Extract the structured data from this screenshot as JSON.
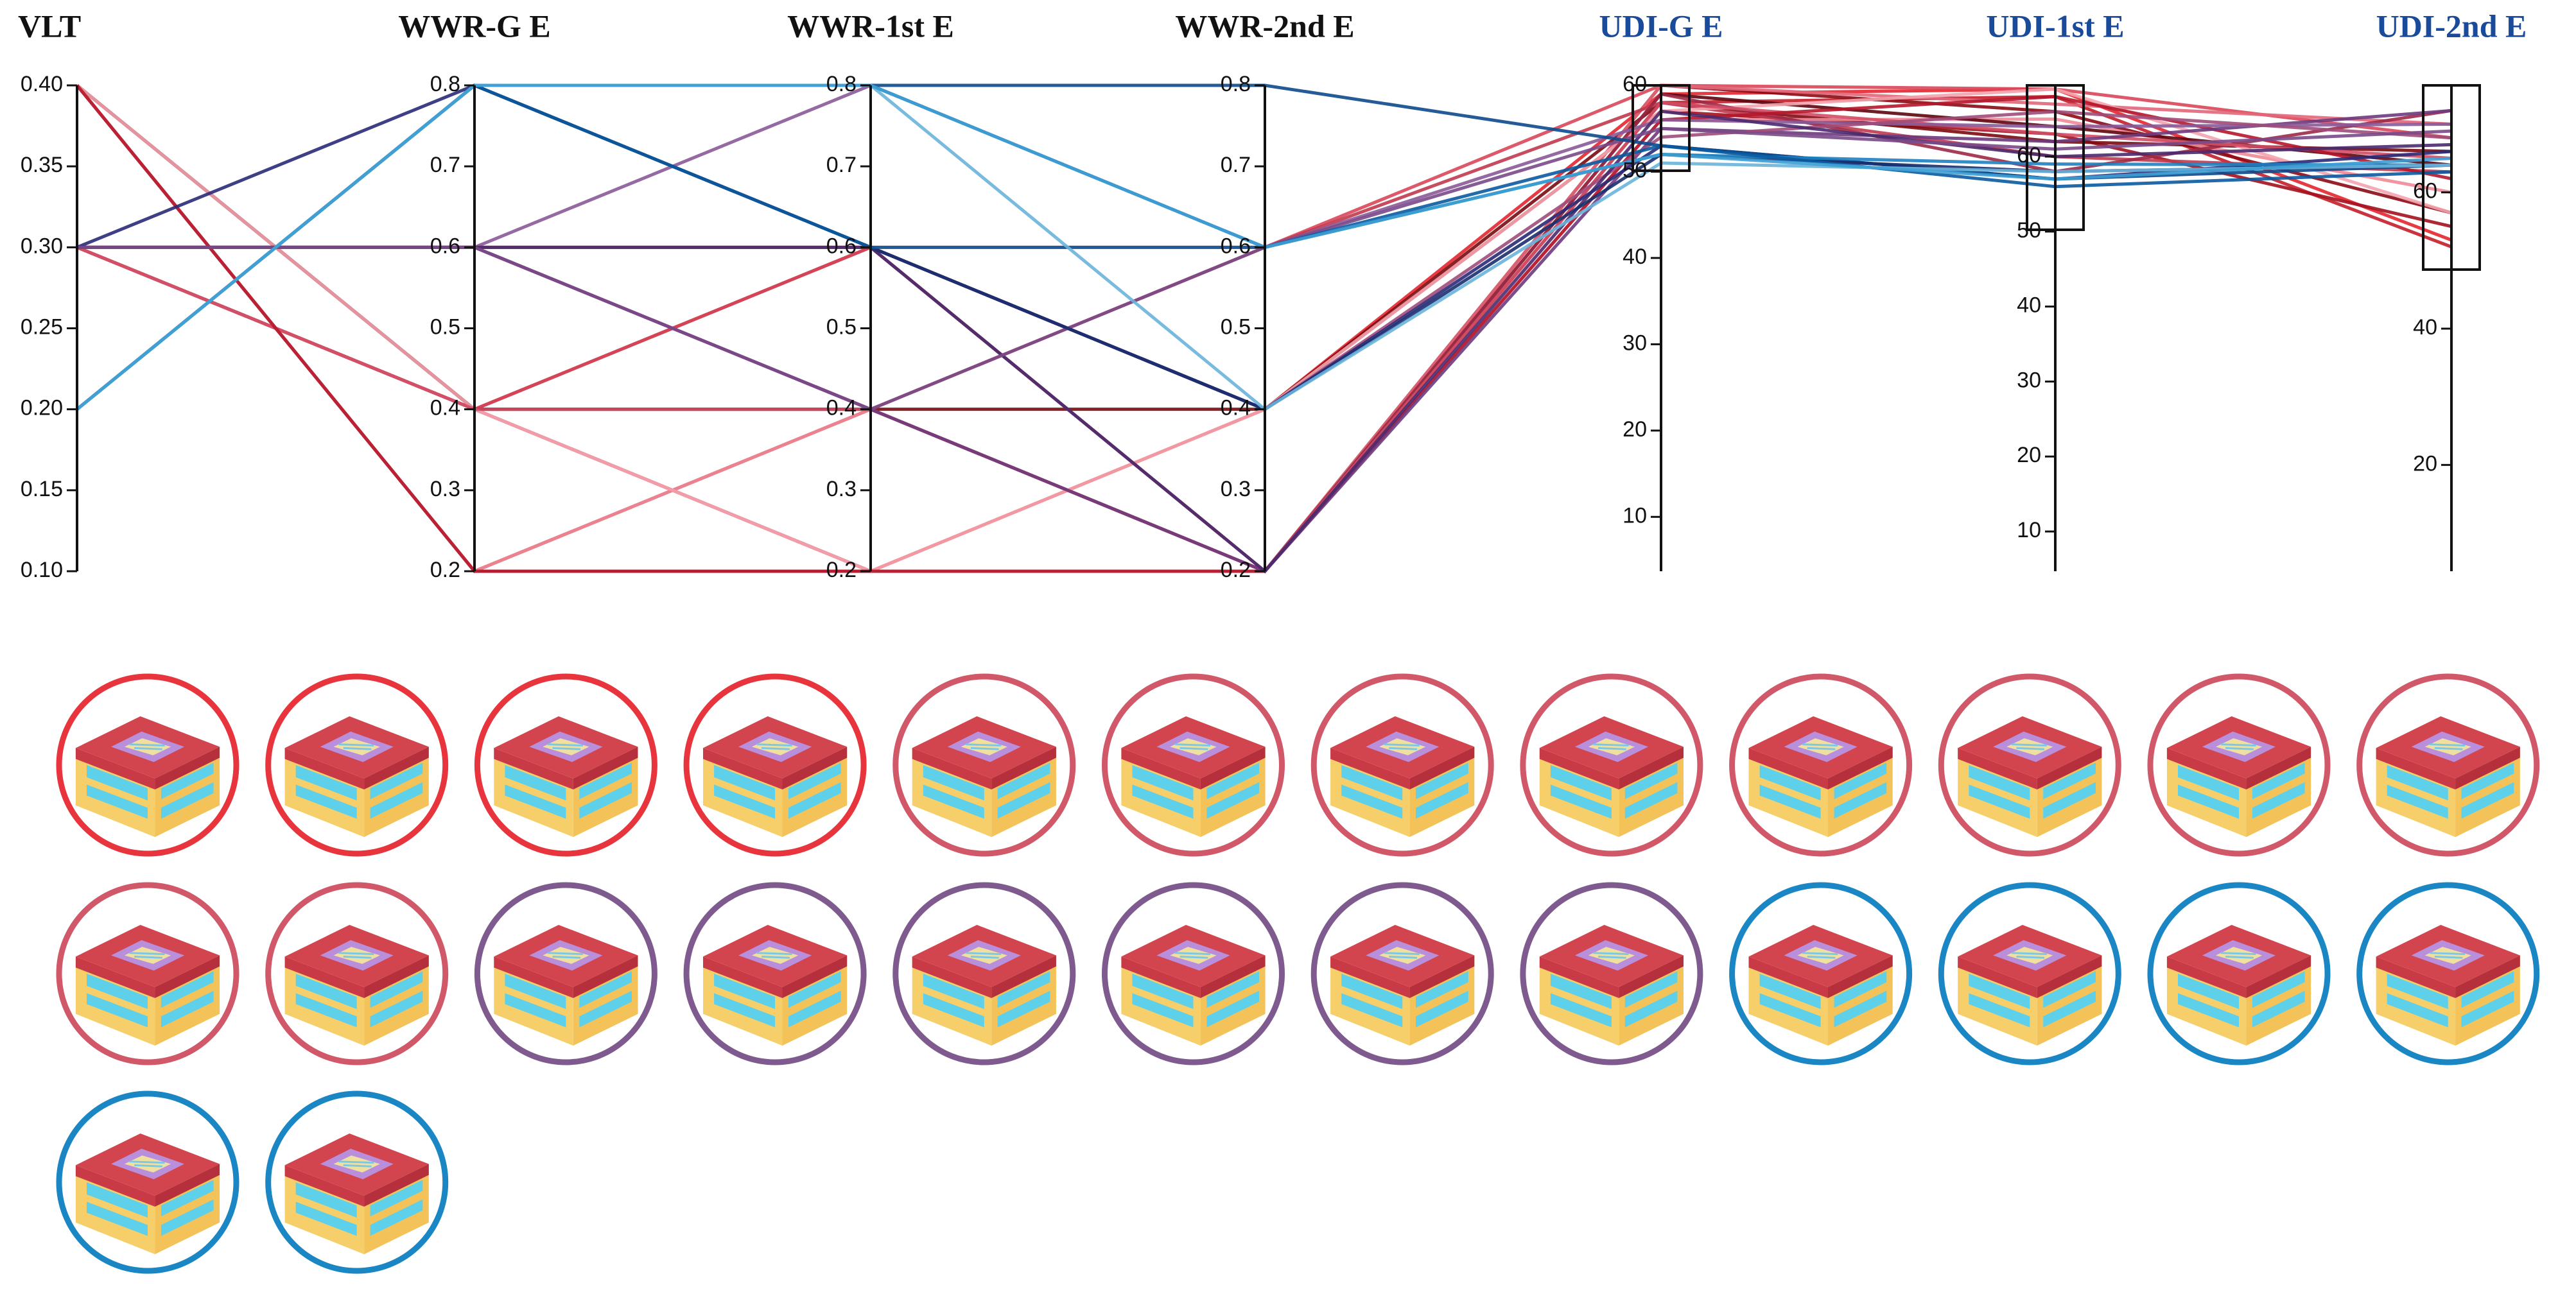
{
  "chart_data": {
    "type": "parallel",
    "axes": [
      {
        "name": "VLT",
        "color": "#111111",
        "ylim": [
          0.1,
          0.4
        ],
        "yticks": [
          {
            "value": 0.1,
            "label": "0.10"
          },
          0.15,
          {
            "value": 0.2,
            "label": "0.20"
          },
          0.25,
          {
            "value": 0.3,
            "label": "0.30"
          },
          0.35,
          {
            "value": 0.4,
            "label": "0.40"
          }
        ]
      },
      {
        "name": "WWR-G E",
        "color": "#111111",
        "ylim": [
          0.2,
          0.8
        ],
        "yticks": [
          0.2,
          0.3,
          0.4,
          0.5,
          0.6,
          0.7,
          0.8
        ]
      },
      {
        "name": "WWR-1st E",
        "color": "#111111",
        "ylim": [
          0.2,
          0.8
        ],
        "yticks": [
          0.2,
          0.3,
          0.4,
          0.5,
          0.6,
          0.7,
          0.8
        ]
      },
      {
        "name": "WWR-2nd E",
        "color": "#111111",
        "ylim": [
          0.2,
          0.8
        ],
        "yticks": [
          0.2,
          0.3,
          0.4,
          0.5,
          0.6,
          0.7,
          0.8
        ]
      },
      {
        "name": "UDI-G E",
        "color": "#1a4a9a",
        "ylim": [
          3.7,
          60
        ],
        "yticks": [
          10,
          20,
          30,
          40,
          50,
          60
        ]
      },
      {
        "name": "UDI-1st E",
        "color": "#1a4a9a",
        "ylim": [
          4.7,
          69.5
        ],
        "yticks": [
          10,
          20,
          30,
          40,
          50,
          60
        ]
      },
      {
        "name": "UDI-2nd E",
        "color": "#1a4a9a",
        "ylim": [
          4.4,
          75.7
        ],
        "yticks": [
          20,
          40,
          60
        ]
      }
    ],
    "series": [
      {
        "color": "#e3262f",
        "values": [
          0.4,
          0.2,
          0.2,
          0.4,
          59,
          69,
          53
        ]
      },
      {
        "color": "#c41e2a",
        "values": [
          0.4,
          0.2,
          0.4,
          0.2,
          58,
          68,
          52
        ]
      },
      {
        "color": "#8b0a14",
        "values": [
          0.3,
          0.4,
          0.2,
          0.2,
          60,
          66,
          57
        ]
      },
      {
        "color": "#a3121e",
        "values": [
          0.4,
          0.4,
          0.6,
          0.4,
          57,
          63,
          55
        ]
      },
      {
        "color": "#d9475a",
        "values": [
          0.3,
          0.4,
          0.6,
          0.6,
          60,
          69,
          68
        ]
      },
      {
        "color": "#7a0a10",
        "values": [
          0.3,
          0.4,
          0.4,
          0.4,
          58,
          62,
          66
        ]
      },
      {
        "color": "#f08a98",
        "values": [
          0.4,
          0.2,
          0.4,
          0.2,
          56,
          65,
          60
        ]
      },
      {
        "color": "#5e0610",
        "values": [
          0.4,
          0.4,
          0.4,
          0.2,
          59,
          64,
          64
        ]
      },
      {
        "color": "#e2677a",
        "values": [
          0.3,
          0.4,
          0.2,
          0.2,
          60,
          67,
          70
        ]
      },
      {
        "color": "#c0394e",
        "values": [
          0.3,
          0.6,
          0.4,
          0.6,
          58,
          60,
          63
        ]
      },
      {
        "color": "#f3a3ae",
        "values": [
          0.4,
          0.4,
          0.2,
          0.4,
          57,
          69,
          57
        ]
      },
      {
        "color": "#9e2a48",
        "values": [
          0.3,
          0.6,
          0.6,
          0.2,
          59,
          58,
          72
        ]
      },
      {
        "color": "#d24e66",
        "values": [
          0.3,
          0.4,
          0.4,
          0.2,
          58,
          63,
          65
        ]
      },
      {
        "color": "#b5172b",
        "values": [
          0.4,
          0.2,
          0.2,
          0.2,
          56,
          68,
          62
        ]
      },
      {
        "color": "#6e3a7e",
        "values": [
          0.3,
          0.6,
          0.4,
          0.2,
          55,
          62,
          72
        ]
      },
      {
        "color": "#8a5a98",
        "values": [
          0.3,
          0.6,
          0.8,
          0.6,
          56,
          64,
          70
        ]
      },
      {
        "color": "#a04c7a",
        "values": [
          0.3,
          0.6,
          0.6,
          0.4,
          54,
          66,
          68
        ]
      },
      {
        "color": "#4a2a6e",
        "values": [
          0.3,
          0.6,
          0.6,
          0.2,
          57,
          60,
          67
        ]
      },
      {
        "color": "#2a2a78",
        "values": [
          0.3,
          0.8,
          0.6,
          0.4,
          53,
          57,
          66
        ]
      },
      {
        "color": "#7a4a8a",
        "values": [
          0.3,
          0.6,
          0.4,
          0.6,
          55,
          61,
          69
        ]
      },
      {
        "color": "#0d4a8c",
        "values": [
          0.2,
          0.8,
          0.8,
          0.8,
          53,
          57,
          64
        ]
      },
      {
        "color": "#1a2f6e",
        "values": [
          0.2,
          0.8,
          0.6,
          0.4,
          52,
          58,
          64
        ]
      },
      {
        "color": "#1f7fc0",
        "values": [
          0.2,
          0.8,
          0.8,
          0.6,
          52,
          59,
          64
        ]
      },
      {
        "color": "#0a5aa0",
        "values": [
          0.2,
          0.8,
          0.6,
          0.6,
          53,
          56,
          63
        ]
      },
      {
        "color": "#6ab4dc",
        "values": [
          0.2,
          0.8,
          0.8,
          0.4,
          51,
          58,
          64
        ]
      },
      {
        "color": "#3d9ed4",
        "values": [
          0.2,
          0.8,
          0.8,
          0.6,
          52,
          57,
          65
        ]
      }
    ]
  },
  "designs": [
    {
      "ring_color": "#e8343c"
    },
    {
      "ring_color": "#e8343c"
    },
    {
      "ring_color": "#e8343c"
    },
    {
      "ring_color": "#e8343c"
    },
    {
      "ring_color": "#d05868"
    },
    {
      "ring_color": "#d05868"
    },
    {
      "ring_color": "#d05868"
    },
    {
      "ring_color": "#d05868"
    },
    {
      "ring_color": "#d05868"
    },
    {
      "ring_color": "#d05868"
    },
    {
      "ring_color": "#d05868"
    },
    {
      "ring_color": "#d05868"
    },
    {
      "ring_color": "#d05868"
    },
    {
      "ring_color": "#d05868"
    },
    {
      "ring_color": "#7e5a8e"
    },
    {
      "ring_color": "#7e5a8e"
    },
    {
      "ring_color": "#7e5a8e"
    },
    {
      "ring_color": "#7e5a8e"
    },
    {
      "ring_color": "#7e5a8e"
    },
    {
      "ring_color": "#7e5a8e"
    },
    {
      "ring_color": "#1a86c4"
    },
    {
      "ring_color": "#1a86c4"
    },
    {
      "ring_color": "#1a86c4"
    },
    {
      "ring_color": "#1a86c4"
    },
    {
      "ring_color": "#1a86c4"
    },
    {
      "ring_color": "#1a86c4"
    }
  ]
}
